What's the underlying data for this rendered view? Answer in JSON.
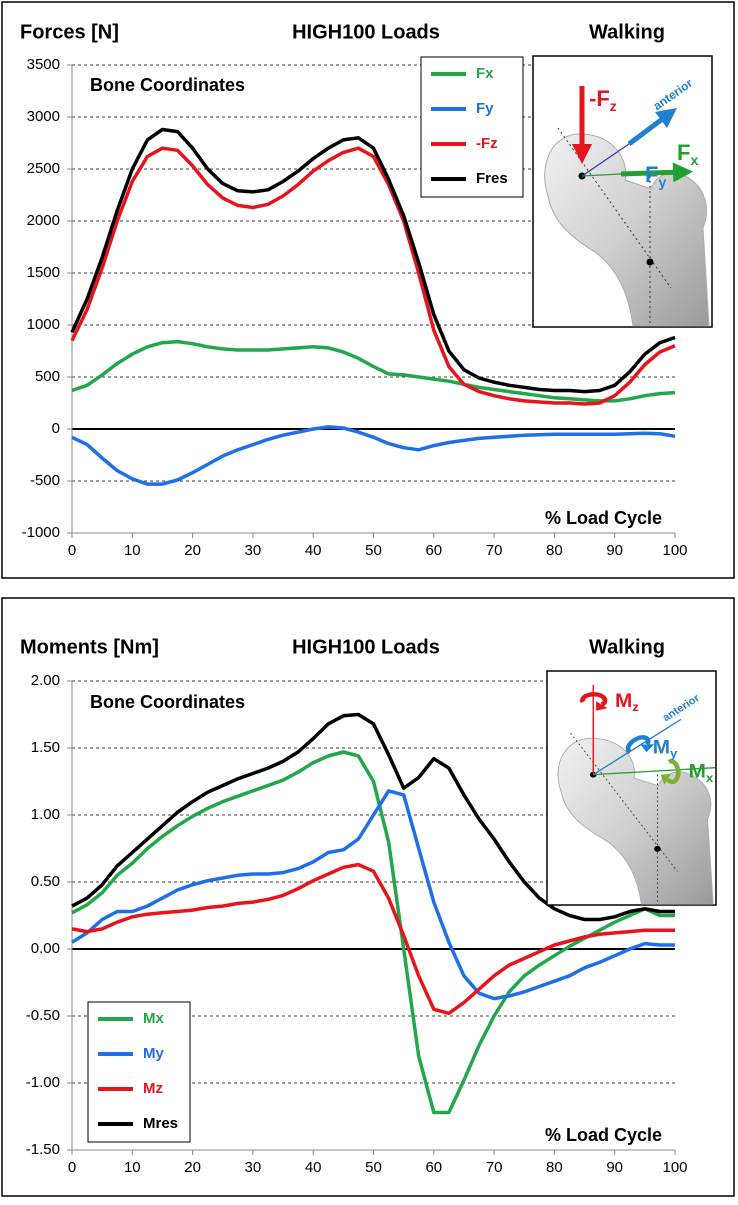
{
  "chart_data": [
    {
      "type": "line",
      "title": "Forces  [N]",
      "subtitle": "HIGH100 Loads",
      "condition": "Walking",
      "annotation": "Bone Coordinates",
      "xlabel": "% Load Cycle",
      "x": [
        0,
        2.5,
        5,
        7.5,
        10,
        12.5,
        15,
        17.5,
        20,
        22.5,
        25,
        27.5,
        30,
        32.5,
        35,
        37.5,
        40,
        42.5,
        45,
        47.5,
        50,
        52.5,
        55,
        57.5,
        60,
        62.5,
        65,
        67.5,
        70,
        72.5,
        75,
        77.5,
        80,
        82.5,
        85,
        87.5,
        90,
        92.5,
        95,
        97.5,
        100
      ],
      "series": [
        {
          "name": "Fx",
          "color": "#22a84a",
          "values": [
            370,
            420,
            520,
            630,
            720,
            790,
            830,
            840,
            820,
            790,
            770,
            760,
            760,
            760,
            770,
            780,
            790,
            780,
            740,
            680,
            600,
            530,
            520,
            500,
            480,
            460,
            430,
            400,
            380,
            360,
            340,
            320,
            300,
            290,
            280,
            270,
            270,
            290,
            320,
            340,
            350
          ]
        },
        {
          "name": "Fy",
          "color": "#1f6fe8",
          "values": [
            -80,
            -150,
            -280,
            -400,
            -480,
            -530,
            -530,
            -490,
            -420,
            -340,
            -260,
            -200,
            -150,
            -100,
            -60,
            -30,
            0,
            20,
            10,
            -30,
            -80,
            -140,
            -180,
            -200,
            -160,
            -130,
            -110,
            -90,
            -80,
            -70,
            -60,
            -55,
            -50,
            -50,
            -50,
            -50,
            -50,
            -45,
            -40,
            -45,
            -70
          ]
        },
        {
          "name": "-Fz",
          "color": "#e8141b",
          "values": [
            850,
            1150,
            1550,
            2000,
            2380,
            2620,
            2700,
            2680,
            2530,
            2350,
            2220,
            2150,
            2130,
            2160,
            2240,
            2350,
            2480,
            2580,
            2660,
            2700,
            2620,
            2350,
            2000,
            1500,
            950,
            600,
            430,
            360,
            320,
            290,
            270,
            260,
            250,
            250,
            240,
            250,
            320,
            450,
            620,
            740,
            800
          ]
        },
        {
          "name": "Fres",
          "color": "#000000",
          "values": [
            930,
            1250,
            1650,
            2100,
            2500,
            2780,
            2880,
            2860,
            2700,
            2500,
            2360,
            2290,
            2280,
            2300,
            2380,
            2480,
            2600,
            2700,
            2780,
            2800,
            2700,
            2400,
            2050,
            1600,
            1100,
            750,
            570,
            490,
            450,
            420,
            400,
            380,
            370,
            370,
            360,
            370,
            420,
            550,
            720,
            830,
            880
          ]
        }
      ],
      "xlim": [
        0,
        100
      ],
      "xticks": [
        0,
        10,
        20,
        30,
        40,
        50,
        60,
        70,
        80,
        90,
        100
      ],
      "ylim": [
        -1000,
        3500
      ],
      "yticks": [
        3500,
        3000,
        2500,
        2000,
        1500,
        1000,
        500,
        0,
        -500,
        -1000
      ],
      "grid": true,
      "legend": "upper right",
      "inset": {
        "anterior": "anterior",
        "labels": [
          {
            "base": "-F",
            "sub": "z",
            "color": "#e8141b"
          },
          {
            "base": "F",
            "sub": "y",
            "color": "#1f7fd0"
          },
          {
            "base": "F",
            "sub": "x",
            "color": "#22a030"
          }
        ]
      }
    },
    {
      "type": "line",
      "title": "Moments [Nm]",
      "subtitle": "HIGH100 Loads",
      "condition": "Walking",
      "annotation": "Bone Coordinates",
      "xlabel": "% Load Cycle",
      "x": [
        0,
        2.5,
        5,
        7.5,
        10,
        12.5,
        15,
        17.5,
        20,
        22.5,
        25,
        27.5,
        30,
        32.5,
        35,
        37.5,
        40,
        42.5,
        45,
        47.5,
        50,
        52.5,
        55,
        57.5,
        60,
        62.5,
        65,
        67.5,
        70,
        72.5,
        75,
        77.5,
        80,
        82.5,
        85,
        87.5,
        90,
        92.5,
        95,
        97.5,
        100
      ],
      "series": [
        {
          "name": "Mx",
          "color": "#22a84a",
          "values": [
            0.27,
            0.33,
            0.42,
            0.55,
            0.64,
            0.75,
            0.84,
            0.92,
            0.99,
            1.05,
            1.1,
            1.14,
            1.18,
            1.22,
            1.26,
            1.32,
            1.39,
            1.44,
            1.47,
            1.44,
            1.25,
            0.8,
            0.0,
            -0.8,
            -1.22,
            -1.22,
            -0.98,
            -0.72,
            -0.5,
            -0.32,
            -0.2,
            -0.12,
            -0.05,
            0.02,
            0.08,
            0.14,
            0.2,
            0.25,
            0.3,
            0.25,
            0.25
          ]
        },
        {
          "name": "My",
          "color": "#1f6fe8",
          "values": [
            0.05,
            0.12,
            0.22,
            0.28,
            0.28,
            0.32,
            0.38,
            0.44,
            0.48,
            0.51,
            0.53,
            0.55,
            0.56,
            0.56,
            0.57,
            0.6,
            0.65,
            0.72,
            0.74,
            0.82,
            1.0,
            1.18,
            1.15,
            0.75,
            0.35,
            0.05,
            -0.2,
            -0.33,
            -0.37,
            -0.35,
            -0.32,
            -0.28,
            -0.24,
            -0.2,
            -0.14,
            -0.1,
            -0.05,
            0.0,
            0.04,
            0.03,
            0.03
          ]
        },
        {
          "name": "Mz",
          "color": "#e8141b",
          "values": [
            0.15,
            0.13,
            0.15,
            0.2,
            0.24,
            0.26,
            0.27,
            0.28,
            0.29,
            0.31,
            0.32,
            0.34,
            0.35,
            0.37,
            0.4,
            0.45,
            0.51,
            0.56,
            0.61,
            0.63,
            0.58,
            0.38,
            0.1,
            -0.2,
            -0.45,
            -0.48,
            -0.4,
            -0.3,
            -0.2,
            -0.12,
            -0.07,
            -0.02,
            0.03,
            0.06,
            0.09,
            0.11,
            0.12,
            0.13,
            0.14,
            0.14,
            0.14
          ]
        },
        {
          "name": "Mres",
          "color": "#000000",
          "values": [
            0.32,
            0.38,
            0.48,
            0.62,
            0.72,
            0.82,
            0.92,
            1.02,
            1.1,
            1.17,
            1.22,
            1.27,
            1.31,
            1.35,
            1.4,
            1.47,
            1.57,
            1.68,
            1.74,
            1.75,
            1.68,
            1.45,
            1.2,
            1.28,
            1.42,
            1.35,
            1.15,
            0.97,
            0.82,
            0.65,
            0.5,
            0.38,
            0.3,
            0.25,
            0.22,
            0.22,
            0.24,
            0.28,
            0.3,
            0.28,
            0.28
          ]
        }
      ],
      "xlim": [
        0,
        100
      ],
      "xticks": [
        0,
        10,
        20,
        30,
        40,
        50,
        60,
        70,
        80,
        90,
        100
      ],
      "ylim": [
        -1.5,
        2
      ],
      "yticks": [
        {
          "value": 2,
          "label": "2.00"
        },
        {
          "value": 1.5,
          "label": "1.50"
        },
        {
          "value": 1,
          "label": "1.00"
        },
        {
          "value": 0.5,
          "label": "0.50"
        },
        {
          "value": 0,
          "label": "0.00"
        },
        {
          "value": -0.5,
          "label": "-0.50"
        },
        {
          "value": -1,
          "label": "-1.00"
        },
        {
          "value": -1.5,
          "label": "-1.50"
        }
      ],
      "grid": true,
      "legend": "lower left",
      "inset": {
        "anterior": "anterior",
        "labels": [
          {
            "base": "M",
            "sub": "z",
            "color": "#e8141b"
          },
          {
            "base": "M",
            "sub": "y",
            "color": "#1f7fd0"
          },
          {
            "base": "M",
            "sub": "x",
            "color": "#22a030"
          }
        ]
      }
    }
  ]
}
